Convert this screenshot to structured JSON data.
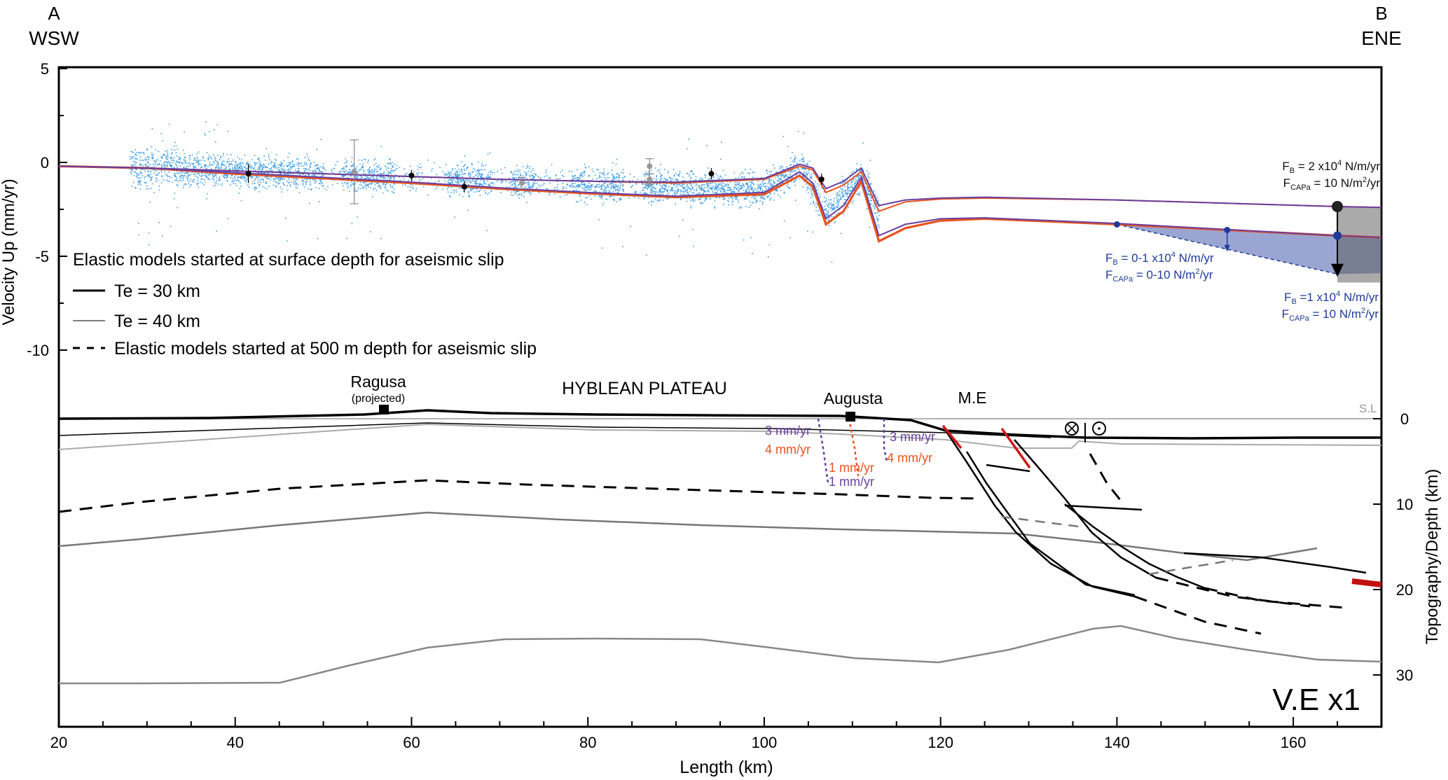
{
  "header": {
    "left_letter": "A",
    "left_dir": "WSW",
    "right_letter": "B",
    "right_dir": "ENE"
  },
  "chart_data": [
    {
      "type": "line",
      "ylabel": "Velocity Up (mm/yr)",
      "yticks": [
        "5",
        "0",
        "-5",
        "-10"
      ],
      "ylim": [
        -14,
        5
      ],
      "xlim": [
        20,
        170
      ],
      "legend": {
        "title": "Elastic models started at surface depth for aseismic slip",
        "te30": "Te = 30 km",
        "te40": "Te = 40 km",
        "dashed": "Elastic models started at 500 m depth for aseismic slip"
      },
      "series": [
        {
          "color": "#e8541c",
          "x": [
            20,
            30,
            40,
            50,
            60,
            70,
            80,
            90,
            100,
            104,
            105.5,
            107,
            109,
            111,
            113,
            116,
            120,
            125,
            140,
            165,
            170
          ],
          "y": [
            -0.2,
            -0.3,
            -0.45,
            -0.6,
            -0.75,
            -0.9,
            -1.0,
            -1.1,
            -0.9,
            -0.2,
            -0.4,
            -1.6,
            -1.2,
            -0.5,
            -2.6,
            -2.1,
            -1.95,
            -1.9,
            -2.0,
            -2.35,
            -2.4
          ]
        },
        {
          "color": "#e8541c",
          "x": [
            20,
            30,
            40,
            50,
            60,
            70,
            80,
            90,
            100,
            104,
            105.5,
            107,
            109,
            111,
            113,
            116,
            120,
            125,
            140,
            165,
            170
          ],
          "y": [
            -0.2,
            -0.3,
            -0.6,
            -0.85,
            -1.1,
            -1.4,
            -1.65,
            -1.85,
            -1.7,
            -0.7,
            -1.3,
            -3.3,
            -2.6,
            -1.0,
            -4.2,
            -3.5,
            -3.1,
            -3.0,
            -3.3,
            -3.9,
            -4.0
          ]
        },
        {
          "color": "#6a3fa0",
          "x": [
            20,
            30,
            40,
            50,
            60,
            70,
            80,
            90,
            100,
            104,
            105.5,
            107,
            109,
            111,
            113,
            116,
            120,
            125,
            140,
            165,
            170
          ],
          "y": [
            -0.2,
            -0.3,
            -0.55,
            -0.8,
            -1.05,
            -1.35,
            -1.6,
            -1.8,
            -1.6,
            -0.5,
            -1.1,
            -3.0,
            -2.3,
            -0.8,
            -3.9,
            -3.3,
            -3.0,
            -2.95,
            -3.25,
            -3.9,
            -4.0
          ]
        },
        {
          "color": "#6a3fa0",
          "x": [
            20,
            30,
            40,
            50,
            60,
            70,
            80,
            90,
            100,
            104,
            105.5,
            107,
            109,
            111,
            113,
            116,
            120,
            125,
            140,
            165,
            170
          ],
          "y": [
            -0.2,
            -0.3,
            -0.45,
            -0.6,
            -0.75,
            -0.9,
            -1.0,
            -1.05,
            -0.85,
            -0.1,
            -0.3,
            -1.4,
            -1.0,
            -0.3,
            -2.3,
            -2.0,
            -1.9,
            -1.85,
            -2.0,
            -2.35,
            -2.4
          ]
        }
      ],
      "gps_points": [
        {
          "x": 41.5,
          "y": -0.6,
          "err": 0.5
        },
        {
          "x": 60,
          "y": -0.7,
          "err": 0.3
        },
        {
          "x": 66,
          "y": -1.3,
          "err": 0.3
        },
        {
          "x": 94,
          "y": -0.6,
          "err": 0.3
        },
        {
          "x": 106.5,
          "y": -0.9,
          "err": 0.3
        }
      ],
      "gps_points_grey": [
        {
          "x": 53.5,
          "y": -0.5,
          "err": 1.7
        },
        {
          "x": 72.5,
          "y": -1.1,
          "err": 0.3
        },
        {
          "x": 87,
          "y": -0.2,
          "err": 0.4
        },
        {
          "x": 87,
          "y": -0.9,
          "err": 0.3
        }
      ],
      "annotations": {
        "fb_top": "F",
        "fb_top_sub": "B",
        "fb_top_val": " = 2 x10",
        "fb_top_sup": "4",
        "fb_top_unit": " N/m/yr",
        "fc_top": "F",
        "fc_top_sub": "CAPa",
        "fc_top_val": " = 10 N/m",
        "fc_top_sup": "2",
        "fc_top_unit": "/yr",
        "fb_mid": "F",
        "fb_mid_sub": "B",
        "fb_mid_val": " = 0-1 x10",
        "fb_mid_sup": "4",
        "fb_mid_unit": " N/m/yr",
        "fc_mid": "F",
        "fc_mid_sub": "CAPa",
        "fc_mid_val": " = 0-10 N/m",
        "fc_mid_sup": "2",
        "fc_mid_unit": "/yr",
        "fb_bot": "F",
        "fb_bot_sub": "B",
        "fb_bot_val": " =1 x10",
        "fb_bot_sup": "4",
        "fb_bot_unit": " N/m/yr",
        "fc_bot": "F",
        "fc_bot_sub": "CAPa",
        "fc_bot_val": " = 10 N/m",
        "fc_bot_sup": "2",
        "fc_bot_unit": "/yr"
      },
      "colors": {
        "blue_scatter": "#3a9be8",
        "orange": "#e8541c",
        "purple": "#6a3fa0",
        "navy": "#1f3a9a",
        "grey": "#7a7a7a",
        "red": "#d01818"
      }
    },
    {
      "type": "line",
      "xlabel": "Length (km)",
      "ylabel": "Topography/Depth (km)",
      "xticks": [
        "20",
        "40",
        "60",
        "80",
        "100",
        "120",
        "140",
        "160"
      ],
      "yticks": [
        "0",
        "10",
        "20",
        "30"
      ],
      "xlim": [
        20,
        170
      ],
      "ylim": [
        36,
        -12
      ],
      "labels": {
        "ragusa": "Ragusa",
        "ragusa_sub": "(projected)",
        "hyblean": "HYBLEAN PLATEAU",
        "augusta": "Augusta",
        "me": "M.E",
        "sl": "S.L",
        "ve": "V.E x1",
        "rate_3a": "3 mm/yr",
        "rate_4a": "4 mm/yr",
        "rate_1a": "1 mm/yr",
        "rate_1b": "1 mm/yr",
        "rate_3b": "3 mm/yr",
        "rate_4b": "4 mm/yr"
      }
    }
  ]
}
